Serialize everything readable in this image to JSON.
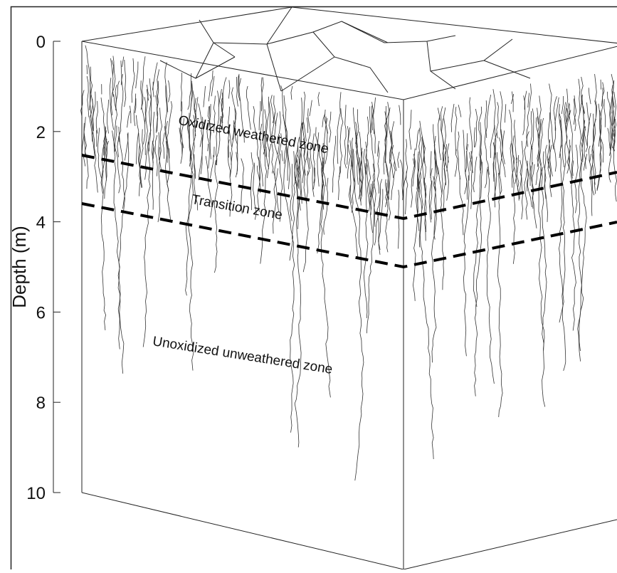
{
  "axis": {
    "label": "Depth (m)",
    "ticks": [
      0,
      2,
      4,
      6,
      8,
      10
    ]
  },
  "zones": {
    "oxidized": "Oxidized weathered zone",
    "transition": "Transition zone",
    "unoxidized": "Unoxidized unweathered zone"
  }
}
